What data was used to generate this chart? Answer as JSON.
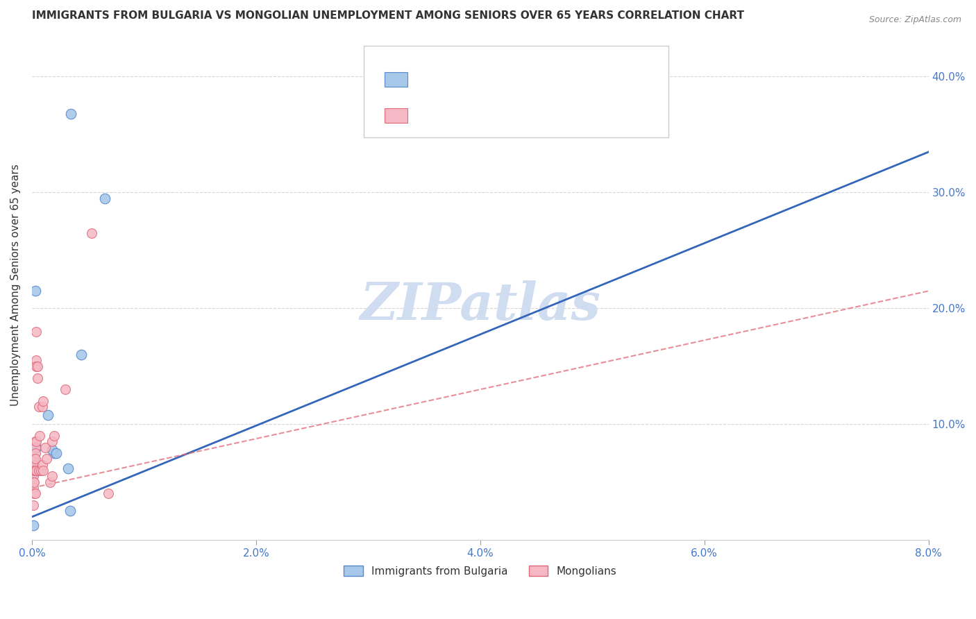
{
  "title": "IMMIGRANTS FROM BULGARIA VS MONGOLIAN UNEMPLOYMENT AMONG SENIORS OVER 65 YEARS CORRELATION CHART",
  "source": "Source: ZipAtlas.com",
  "ylabel": "Unemployment Among Seniors over 65 years",
  "xlim": [
    0.0,
    0.08
  ],
  "ylim": [
    0.0,
    0.44
  ],
  "xticks": [
    0.0,
    0.02,
    0.04,
    0.06,
    0.08
  ],
  "xticklabels": [
    "0.0%",
    "2.0%",
    "4.0%",
    "6.0%",
    "8.0%"
  ],
  "yticks": [
    0.0,
    0.1,
    0.2,
    0.3,
    0.4
  ],
  "yticklabels": [
    "",
    "10.0%",
    "20.0%",
    "30.0%",
    "40.0%"
  ],
  "watermark": "ZIPatlas",
  "legend_label1": "Immigrants from Bulgaria",
  "legend_label2": "Mongolians",
  "blue_scatter_color": "#a8c8ea",
  "blue_edge_color": "#5588cc",
  "pink_scatter_color": "#f5b8c4",
  "pink_edge_color": "#e06878",
  "blue_line_color": "#3366bb",
  "pink_line_color": "#e06878",
  "title_color": "#333333",
  "ylabel_color": "#333333",
  "tick_color": "#4477cc",
  "r_text_color": "#222222",
  "v_text_color": "#3366bb",
  "n_label_color": "#222222",
  "n_val_color": "#ee4455",
  "grid_color": "#cccccc",
  "watermark_color": "#d0ddf0",
  "blue_scatter_x": [
    0.0035,
    0.0002,
    0.0001,
    0.0002,
    0.0003,
    0.0004,
    0.0002,
    0.0002,
    0.0001,
    0.00145,
    0.002,
    0.0018,
    0.0032,
    0.0044,
    0.0065,
    0.0022,
    0.0034
  ],
  "blue_scatter_y": [
    0.368,
    0.065,
    0.058,
    0.062,
    0.215,
    0.08,
    0.068,
    0.058,
    0.013,
    0.108,
    0.075,
    0.078,
    0.062,
    0.16,
    0.295,
    0.075,
    0.025
  ],
  "pink_scatter_x": [
    0.0001,
    0.0001,
    0.0001,
    0.0001,
    0.0001,
    0.0001,
    0.0002,
    0.0002,
    0.0002,
    0.0002,
    0.0002,
    0.0002,
    0.0003,
    0.0003,
    0.0003,
    0.0003,
    0.0003,
    0.0003,
    0.0004,
    0.0004,
    0.0004,
    0.0004,
    0.0004,
    0.0005,
    0.0005,
    0.0006,
    0.0006,
    0.0007,
    0.0008,
    0.0009,
    0.0009,
    0.001,
    0.001,
    0.0012,
    0.0013,
    0.0016,
    0.0018,
    0.0018,
    0.002,
    0.003,
    0.0053,
    0.0068
  ],
  "pink_scatter_y": [
    0.065,
    0.065,
    0.055,
    0.05,
    0.045,
    0.03,
    0.07,
    0.07,
    0.065,
    0.06,
    0.05,
    0.04,
    0.085,
    0.08,
    0.075,
    0.07,
    0.06,
    0.04,
    0.18,
    0.155,
    0.15,
    0.085,
    0.06,
    0.15,
    0.14,
    0.115,
    0.06,
    0.09,
    0.06,
    0.115,
    0.065,
    0.12,
    0.06,
    0.08,
    0.07,
    0.05,
    0.085,
    0.055,
    0.09,
    0.13,
    0.265,
    0.04
  ],
  "blue_trend_x0": 0.0,
  "blue_trend_x1": 0.08,
  "blue_trend_y0": 0.02,
  "blue_trend_y1": 0.335,
  "pink_trend_x0": 0.0,
  "pink_trend_x1": 0.08,
  "pink_trend_y0": 0.045,
  "pink_trend_y1": 0.215
}
